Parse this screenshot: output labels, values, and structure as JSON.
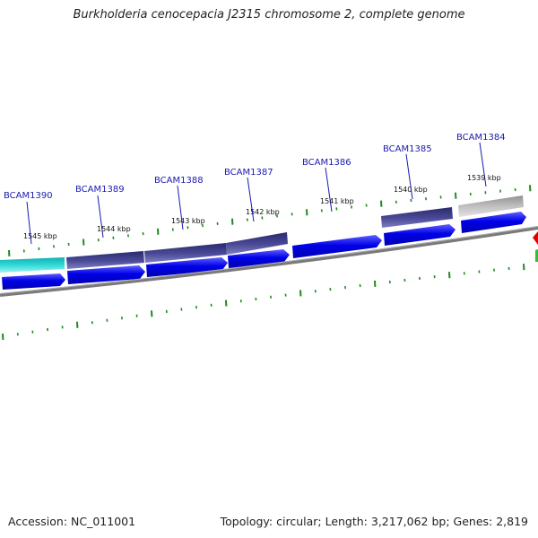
{
  "title": "Burkholderia cenocepacia J2315 chromosome 2, complete genome",
  "accession_label": "Accession: NC_011001",
  "summary": "Topology: circular; Length: 3,217,062 bp; Genes: 2,819",
  "colors": {
    "gene_label": "#1a1ab0",
    "cds_forward": "#0000e0",
    "cds_forward_light": "#7070ff",
    "feature_teal": "#1cc8c8",
    "feature_navy": "#3a3a86",
    "feature_gray": "#b8b8b8",
    "backbone": "#808080",
    "tick": "#1f8a1f",
    "marker_red": "#e00000",
    "marker_green": "#30c030"
  },
  "icons": [
    "gene-arrow-icon",
    "strand-marker-icon"
  ],
  "genes": [
    {
      "name": "BCAM1390",
      "color": "teal"
    },
    {
      "name": "BCAM1389",
      "color": "navy"
    },
    {
      "name": "BCAM1388",
      "color": "navy"
    },
    {
      "name": "BCAM1387",
      "color": "navy"
    },
    {
      "name": "BCAM1386",
      "color": "blue"
    },
    {
      "name": "BCAM1385",
      "color": "navy"
    },
    {
      "name": "BCAM1384",
      "color": "gray"
    }
  ],
  "scale_ticks": [
    "1545 kbp",
    "1544 kbp",
    "1543 kbp",
    "1542 kbp",
    "1541 kbp",
    "1540 kbp",
    "1539 kbp"
  ]
}
